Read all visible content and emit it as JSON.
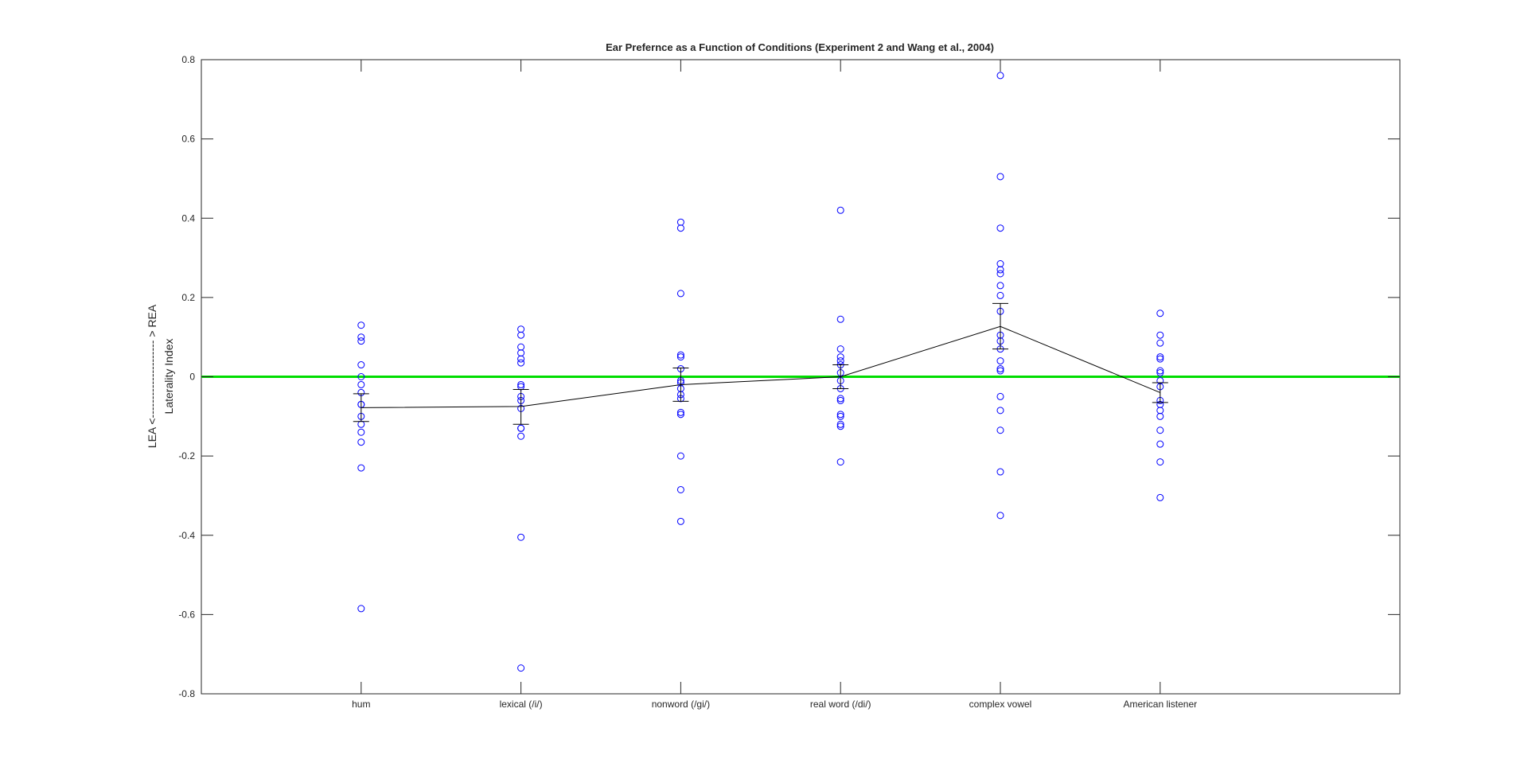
{
  "chart_data": {
    "type": "scatter",
    "title": "Ear Prefernce as a Function of Conditions (Experiment 2 and Wang et al., 2004)",
    "xlabel": "",
    "ylabel_lines": [
      "LEA <--------------------- > REA",
      "Laterality Index"
    ],
    "ylim": [
      -0.8,
      0.8
    ],
    "yticks": [
      -0.8,
      -0.6,
      -0.4,
      -0.2,
      0,
      0.2,
      0.4,
      0.6,
      0.8
    ],
    "ytick_labels": [
      "-0.8",
      "-0.6",
      "-0.4",
      "-0.2",
      "0",
      "0.2",
      "0.4",
      "0.6",
      "0.8"
    ],
    "xlim": [
      0,
      7.5
    ],
    "categories": [
      "hum",
      "lexical (/i/)",
      "nonword (/gi/)",
      "real word (/di/)",
      "complex vowel",
      "American listener"
    ],
    "grid": false,
    "reference_line": {
      "y": 0,
      "color": "#00dd00"
    },
    "point_color": "#0000ff",
    "mean_color": "#000000",
    "points": [
      [
        0.13,
        0.1,
        0.09,
        0.03,
        0.0,
        -0.02,
        -0.04,
        -0.07,
        -0.07,
        -0.1,
        -0.12,
        -0.14,
        -0.165,
        -0.23,
        -0.585
      ],
      [
        0.12,
        0.105,
        0.075,
        0.06,
        0.045,
        0.035,
        -0.02,
        -0.025,
        -0.05,
        -0.06,
        -0.08,
        -0.13,
        -0.13,
        -0.15,
        -0.405,
        -0.735
      ],
      [
        0.39,
        0.375,
        0.21,
        0.055,
        0.05,
        0.02,
        -0.01,
        -0.015,
        -0.03,
        -0.045,
        -0.055,
        -0.09,
        -0.095,
        -0.2,
        -0.285,
        -0.365
      ],
      [
        0.42,
        0.145,
        0.07,
        0.05,
        0.04,
        0.03,
        0.01,
        -0.01,
        -0.03,
        -0.055,
        -0.06,
        -0.095,
        -0.1,
        -0.12,
        -0.125,
        -0.215
      ],
      [
        0.76,
        0.505,
        0.375,
        0.285,
        0.27,
        0.26,
        0.23,
        0.205,
        0.165,
        0.105,
        0.09,
        0.07,
        0.04,
        0.02,
        0.015,
        -0.05,
        -0.085,
        -0.135,
        -0.24,
        -0.35
      ],
      [
        0.16,
        0.105,
        0.085,
        0.05,
        0.045,
        0.015,
        0.01,
        -0.01,
        -0.025,
        -0.06,
        -0.07,
        -0.085,
        -0.1,
        -0.135,
        -0.17,
        -0.215,
        -0.305
      ]
    ],
    "means": [
      -0.078,
      -0.075,
      -0.02,
      0.0,
      0.127,
      -0.04
    ],
    "error_bars": [
      {
        "low": -0.113,
        "high": -0.043
      },
      {
        "low": -0.12,
        "high": -0.032
      },
      {
        "low": -0.062,
        "high": 0.022
      },
      {
        "low": -0.03,
        "high": 0.03
      },
      {
        "low": 0.07,
        "high": 0.185
      },
      {
        "low": -0.065,
        "high": -0.015
      }
    ]
  }
}
